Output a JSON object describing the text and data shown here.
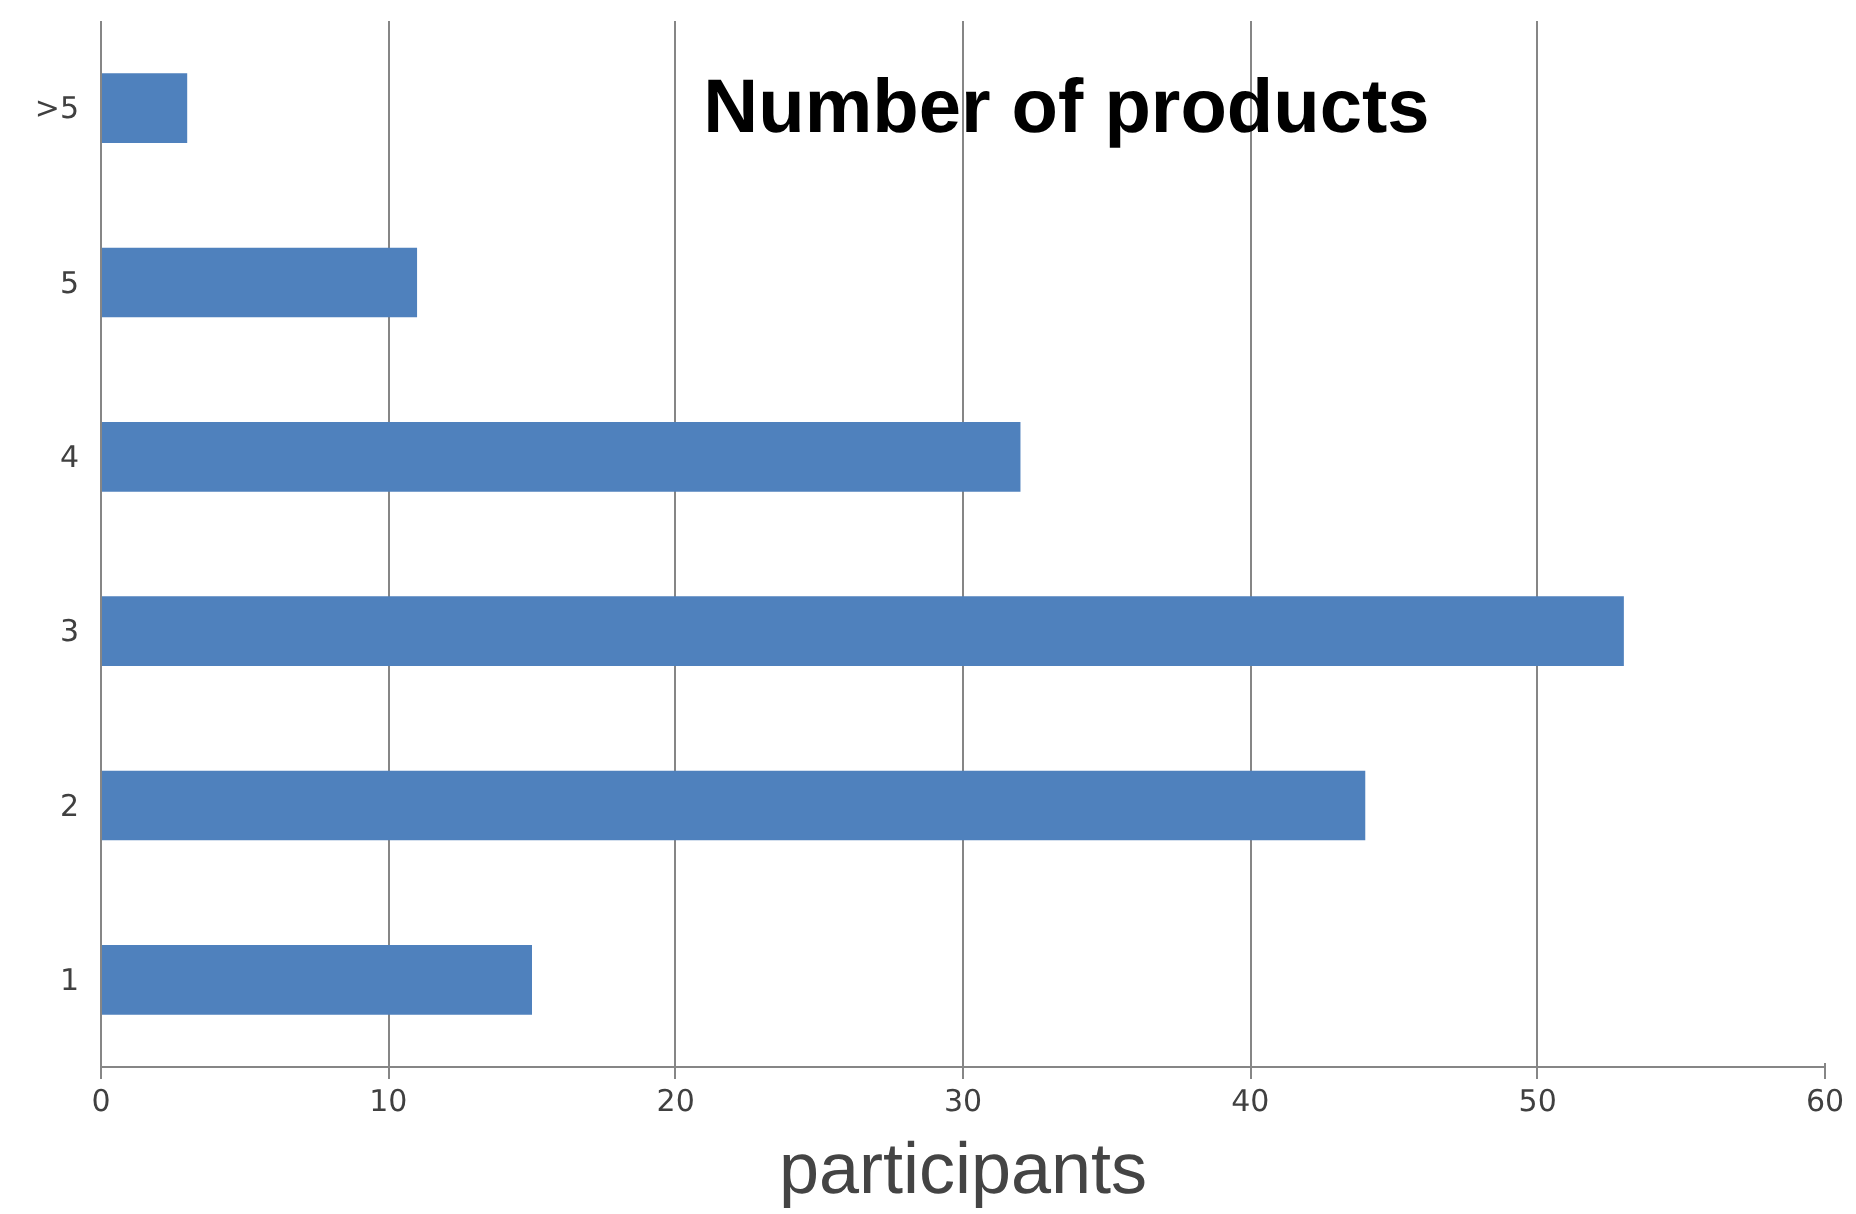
{
  "chart_data": {
    "type": "bar",
    "orientation": "horizontal",
    "title": "Number of products",
    "xlabel": "participants",
    "categories": [
      ">5",
      "5",
      "4",
      "3",
      "2",
      "1"
    ],
    "values": [
      3,
      11,
      32,
      53,
      44,
      15
    ],
    "color": "#4f81bd",
    "xlim": [
      0,
      60
    ],
    "xticks": [
      0,
      10,
      20,
      30,
      40,
      50,
      60
    ],
    "grid": "x"
  }
}
